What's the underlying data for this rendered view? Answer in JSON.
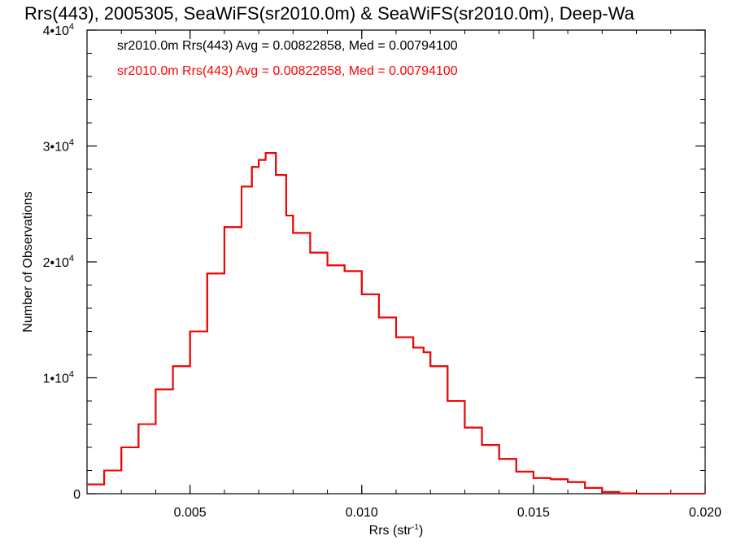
{
  "chart_data": {
    "type": "line",
    "title": "Rrs(443), 2005305, SeaWiFS(sr2010.0m) & SeaWiFS(sr2010.0m), Deep-Wa",
    "xlabel_base": "Rrs (str",
    "xlabel_sup": "-1",
    "xlabel_end": ")",
    "ylabel": "Number of Observations",
    "xlim": [
      0.002,
      0.02
    ],
    "ylim": [
      0,
      40000
    ],
    "x_ticks": [
      0.005,
      0.01,
      0.015,
      0.02
    ],
    "x_tick_labels": [
      "0.005",
      "0.010",
      "0.015",
      "0.020"
    ],
    "y_ticks": [
      {
        "value": 0,
        "base": "0",
        "exp": ""
      },
      {
        "value": 10000,
        "base": "1•10",
        "exp": "4"
      },
      {
        "value": 20000,
        "base": "2•10",
        "exp": "4"
      },
      {
        "value": 30000,
        "base": "3•10",
        "exp": "4"
      },
      {
        "value": 40000,
        "base": "4•10",
        "exp": "4"
      }
    ],
    "series": [
      {
        "name": "sr2010.0m Rrs(443) Avg = 0.00822858, Med = 0.00794100",
        "color": "#000000",
        "x": [
          0.002,
          0.0025,
          0.003,
          0.0035,
          0.004,
          0.0045,
          0.005,
          0.0055,
          0.006,
          0.0065,
          0.0068,
          0.007,
          0.0072,
          0.0075,
          0.0078,
          0.008,
          0.0085,
          0.009,
          0.0095,
          0.01,
          0.0105,
          0.011,
          0.0115,
          0.0118,
          0.012,
          0.0125,
          0.013,
          0.0135,
          0.014,
          0.0145,
          0.015,
          0.0155,
          0.016,
          0.0165,
          0.017,
          0.0175,
          0.018,
          0.019,
          0.02
        ],
        "y": [
          800,
          2000,
          4000,
          6000,
          9000,
          11000,
          14000,
          19000,
          23000,
          26500,
          28200,
          28800,
          29400,
          27500,
          24000,
          22500,
          20800,
          19700,
          19200,
          17200,
          15200,
          13500,
          12600,
          12200,
          11000,
          8000,
          5700,
          4200,
          3000,
          1900,
          1350,
          1250,
          1000,
          500,
          150,
          30,
          0,
          0,
          0
        ]
      },
      {
        "name": "sr2010.0m Rrs(443) Avg = 0.00822858, Med = 0.00794100",
        "color": "#ff0000",
        "x": [
          0.002,
          0.0025,
          0.003,
          0.0035,
          0.004,
          0.0045,
          0.005,
          0.0055,
          0.006,
          0.0065,
          0.0068,
          0.007,
          0.0072,
          0.0075,
          0.0078,
          0.008,
          0.0085,
          0.009,
          0.0095,
          0.01,
          0.0105,
          0.011,
          0.0115,
          0.0118,
          0.012,
          0.0125,
          0.013,
          0.0135,
          0.014,
          0.0145,
          0.015,
          0.0155,
          0.016,
          0.0165,
          0.017,
          0.0175,
          0.018,
          0.019,
          0.02
        ],
        "y": [
          800,
          2000,
          4000,
          6000,
          9000,
          11000,
          14000,
          19000,
          23000,
          26500,
          28200,
          28800,
          29400,
          27500,
          24000,
          22500,
          20800,
          19700,
          19200,
          17200,
          15200,
          13500,
          12600,
          12200,
          11000,
          8000,
          5700,
          4200,
          3000,
          1900,
          1350,
          1250,
          1000,
          500,
          150,
          30,
          0,
          0,
          0
        ]
      }
    ],
    "grid": false,
    "legend_position": "top-left inside plot"
  }
}
